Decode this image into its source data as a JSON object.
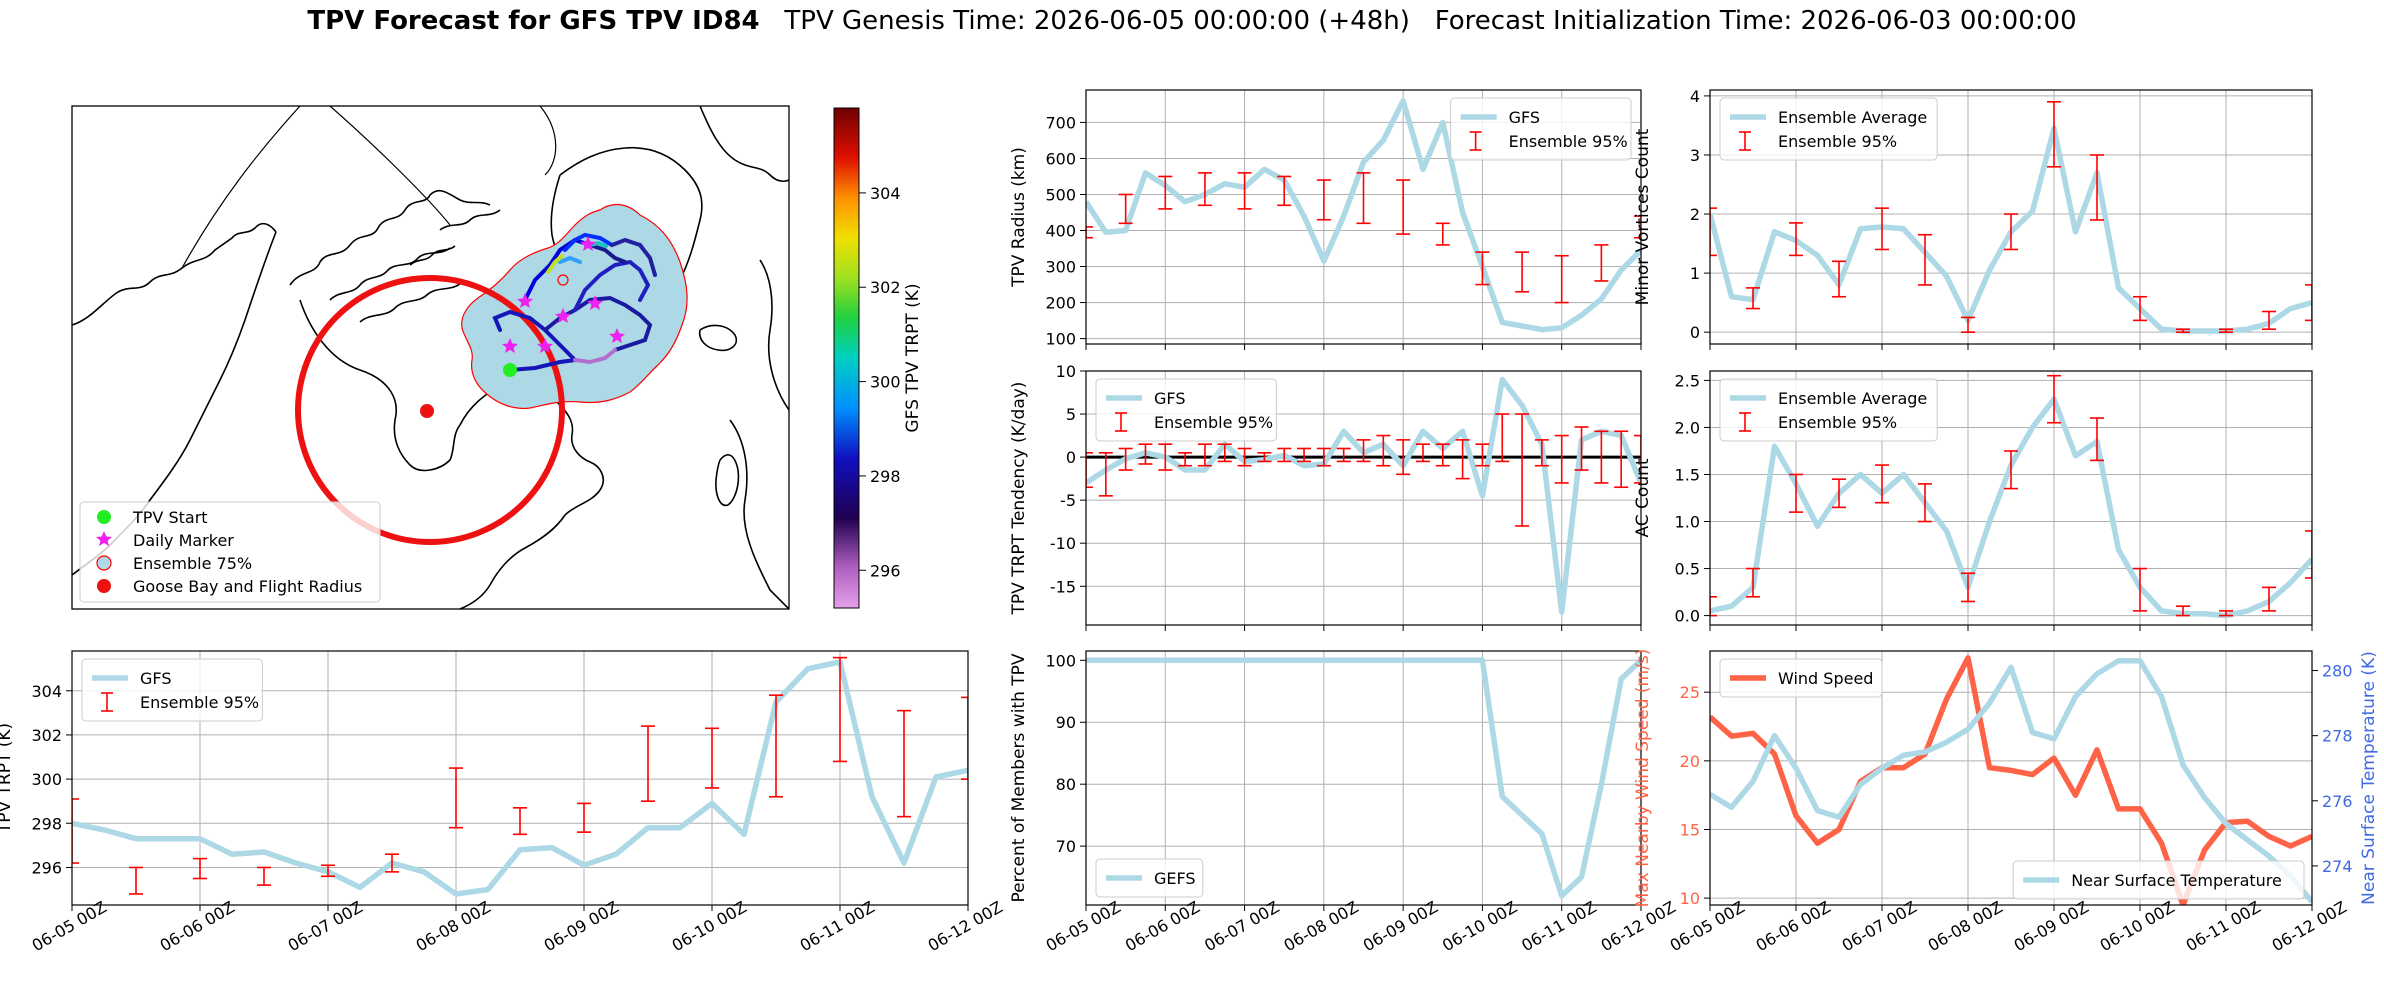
{
  "figure": {
    "title_bold": "TPV Forecast for GFS TPV ID84",
    "title_genesis": "TPV Genesis Time: 2026-06-05 00:00:00 (+48h)",
    "title_init": "Forecast Initialization Time: 2026-06-03 00:00:00"
  },
  "colors": {
    "gfs": "#add8e6",
    "ensemble": "#ff0000",
    "wind": "#ff6347",
    "temperature_axis": "#4169e1",
    "shading": "#add8e6"
  },
  "time_ticks": [
    "06-05 00Z",
    "06-06 00Z",
    "06-07 00Z",
    "06-08 00Z",
    "06-09 00Z",
    "06-10 00Z",
    "06-11 00Z",
    "06-12 00Z"
  ],
  "map": {
    "legend": [
      "TPV Start",
      "Daily Marker",
      "Ensemble 75%",
      "Goose Bay and Flight Radius"
    ],
    "colorbar_label": "GFS TPV TRPT (K)",
    "colorbar_ticks": [
      296,
      298,
      300,
      302,
      304
    ],
    "colorbar_range": [
      295.2,
      305.8
    ]
  },
  "chart_data": [
    {
      "id": "trpt",
      "type": "line",
      "ylabel": "TPV TRPT (K)",
      "ylim": [
        294.3,
        305.8
      ],
      "yticks": [
        296,
        298,
        300,
        302,
        304
      ],
      "xlim": [
        0,
        7
      ],
      "grid": true,
      "legend": [
        "GFS",
        "Ensemble 95%"
      ],
      "legend_position": "upper-left",
      "series": [
        {
          "name": "GFS",
          "x": [
            0,
            0.25,
            0.5,
            0.75,
            1,
            1.25,
            1.5,
            1.75,
            2,
            2.25,
            2.5,
            2.75,
            3,
            3.25,
            3.5,
            3.75,
            4,
            4.25,
            4.5,
            4.75,
            5,
            5.25,
            5.5,
            5.75,
            6,
            6.25,
            6.5,
            6.75,
            7
          ],
          "values": [
            298.0,
            297.7,
            297.3,
            297.3,
            297.3,
            296.6,
            296.7,
            296.2,
            295.8,
            295.1,
            296.2,
            295.8,
            294.8,
            295.0,
            296.8,
            296.9,
            296.1,
            296.6,
            297.8,
            297.8,
            298.9,
            297.5,
            303.5,
            305.0,
            305.3,
            299.2,
            296.2,
            300.1,
            300.4
          ]
        }
      ],
      "errorbars": {
        "x": [
          0,
          0.5,
          1,
          1.5,
          2,
          2.5,
          3,
          3.5,
          4,
          4.5,
          5,
          5.5,
          6,
          6.5,
          7
        ],
        "lower": [
          296.2,
          294.8,
          295.5,
          295.2,
          295.6,
          295.8,
          297.8,
          297.5,
          297.6,
          299.0,
          299.6,
          299.2,
          300.8,
          298.3,
          300.0
        ],
        "upper": [
          299.1,
          296.0,
          296.4,
          296.0,
          296.1,
          296.6,
          300.5,
          298.7,
          298.9,
          302.4,
          302.3,
          303.8,
          305.5,
          303.1,
          303.7
        ]
      }
    },
    {
      "id": "radius",
      "type": "line",
      "ylabel": "TPV Radius (km)",
      "ylim": [
        85,
        790
      ],
      "yticks": [
        100,
        200,
        300,
        400,
        500,
        600,
        700
      ],
      "xlim": [
        0,
        7
      ],
      "grid": true,
      "legend": [
        "GFS",
        "Ensemble 95%"
      ],
      "legend_position": "upper-right",
      "series": [
        {
          "name": "GFS",
          "x": [
            0,
            0.25,
            0.5,
            0.75,
            1,
            1.25,
            1.5,
            1.75,
            2,
            2.25,
            2.5,
            2.75,
            3,
            3.25,
            3.5,
            3.75,
            4,
            4.25,
            4.5,
            4.75,
            5,
            5.25,
            5.5,
            5.75,
            6,
            6.25,
            6.5,
            6.75,
            7
          ],
          "values": [
            480,
            395,
            400,
            560,
            525,
            480,
            500,
            530,
            520,
            570,
            540,
            440,
            315,
            440,
            590,
            650,
            760,
            570,
            700,
            450,
            300,
            145,
            135,
            125,
            130,
            165,
            210,
            290,
            345
          ]
        }
      ],
      "errorbars": {
        "x": [
          0,
          0.5,
          1,
          1.5,
          2,
          2.5,
          3,
          3.5,
          4,
          4.5,
          5,
          5.5,
          6,
          6.5,
          7
        ],
        "lower": [
          380,
          420,
          460,
          470,
          460,
          470,
          430,
          420,
          390,
          360,
          250,
          230,
          200,
          260,
          380
        ],
        "upper": [
          410,
          500,
          550,
          560,
          560,
          550,
          540,
          560,
          540,
          420,
          340,
          340,
          330,
          360,
          440
        ]
      }
    },
    {
      "id": "minor",
      "type": "line",
      "ylabel": "Minor Vortices Count",
      "ylim": [
        -0.2,
        4.1
      ],
      "yticks": [
        0,
        1,
        2,
        3,
        4
      ],
      "xlim": [
        0,
        7
      ],
      "grid": true,
      "legend": [
        "Ensemble Average",
        "Ensemble 95%"
      ],
      "legend_position": "upper-left",
      "series": [
        {
          "name": "Ensemble Average",
          "x": [
            0,
            0.25,
            0.5,
            0.75,
            1,
            1.25,
            1.5,
            1.75,
            2,
            2.25,
            2.5,
            2.75,
            3,
            3.25,
            3.5,
            3.75,
            4,
            4.25,
            4.5,
            4.75,
            5,
            5.25,
            5.5,
            5.75,
            6,
            6.25,
            6.5,
            6.75,
            7
          ],
          "values": [
            2.0,
            0.6,
            0.55,
            1.7,
            1.55,
            1.3,
            0.8,
            1.75,
            1.78,
            1.75,
            1.35,
            0.95,
            0.2,
            1.05,
            1.7,
            2.05,
            3.45,
            1.7,
            2.7,
            0.75,
            0.4,
            0.05,
            0.02,
            0.02,
            0.02,
            0.05,
            0.15,
            0.4,
            0.5
          ]
        }
      ],
      "errorbars": {
        "x": [
          0,
          0.5,
          1,
          1.5,
          2,
          2.5,
          3,
          3.5,
          4,
          4.5,
          5,
          5.5,
          6,
          6.5,
          7
        ],
        "lower": [
          1.3,
          0.4,
          1.3,
          0.6,
          1.4,
          0.8,
          0.0,
          1.4,
          2.8,
          1.9,
          0.2,
          0.0,
          0.0,
          0.05,
          0.2
        ],
        "upper": [
          2.1,
          0.75,
          1.85,
          1.2,
          2.1,
          1.65,
          0.25,
          2.0,
          3.9,
          3.0,
          0.6,
          0.05,
          0.05,
          0.35,
          0.8
        ]
      }
    },
    {
      "id": "tendency",
      "type": "line",
      "ylabel": "TPV TRPT Tendency (K/day)",
      "ylim": [
        -19.5,
        10
      ],
      "yticks": [
        -15,
        -10,
        -5,
        0,
        5,
        10
      ],
      "xlim": [
        0,
        7
      ],
      "grid": true,
      "legend": [
        "GFS",
        "Ensemble 95%"
      ],
      "legend_position": "upper-left",
      "zero_line": true,
      "series": [
        {
          "name": "GFS",
          "x": [
            0,
            0.25,
            0.5,
            0.75,
            1,
            1.25,
            1.5,
            1.75,
            2,
            2.25,
            2.5,
            2.75,
            3,
            3.25,
            3.5,
            3.75,
            4,
            4.25,
            4.5,
            4.75,
            5,
            5.25,
            5.5,
            5.75,
            6,
            6.25,
            6.5,
            6.75,
            7
          ],
          "values": [
            -3.0,
            -1.5,
            -0.2,
            0.5,
            0.0,
            -1.5,
            -1.5,
            1.5,
            -0.5,
            -0.3,
            0.2,
            -1.0,
            -0.8,
            3.0,
            0.5,
            1.5,
            -1.0,
            3.0,
            1.0,
            3.0,
            -4.5,
            9.0,
            6.0,
            1.5,
            -18.0,
            2.0,
            3.0,
            2.5,
            -3.0
          ]
        }
      ],
      "errorbars": {
        "x": [
          0,
          0.25,
          0.5,
          0.75,
          1,
          1.25,
          1.5,
          1.75,
          2,
          2.25,
          2.5,
          2.75,
          3,
          3.25,
          3.5,
          3.75,
          4,
          4.25,
          4.5,
          4.75,
          5,
          5.25,
          5.5,
          5.75,
          6,
          6.25,
          6.5,
          6.75,
          7
        ],
        "lower": [
          -3.5,
          -4.5,
          -1.5,
          -0.8,
          -1.5,
          -1.0,
          -1.0,
          -0.5,
          -1.0,
          -0.5,
          -0.5,
          -0.5,
          -1.0,
          -0.5,
          -0.5,
          -1.0,
          -2.0,
          -0.5,
          -1.0,
          -2.5,
          -1.0,
          -0.5,
          -8.0,
          -1.0,
          -3.0,
          -1.5,
          -3.0,
          -3.5,
          -3.0
        ],
        "upper": [
          0.5,
          0.5,
          1.0,
          1.5,
          1.5,
          0.5,
          1.5,
          1.5,
          1.0,
          0.5,
          1.0,
          1.0,
          1.0,
          1.0,
          2.0,
          2.5,
          2.0,
          1.5,
          1.5,
          2.0,
          1.5,
          5.0,
          5.0,
          2.0,
          2.5,
          3.5,
          3.0,
          3.0,
          2.5
        ]
      }
    },
    {
      "id": "ac",
      "type": "line",
      "ylabel": "AC Count",
      "ylim": [
        -0.1,
        2.6
      ],
      "yticks": [
        0.0,
        0.5,
        1.0,
        1.5,
        2.0,
        2.5
      ],
      "xlim": [
        0,
        7
      ],
      "grid": true,
      "legend": [
        "Ensemble Average",
        "Ensemble 95%"
      ],
      "legend_position": "upper-left",
      "series": [
        {
          "name": "Ensemble Average",
          "x": [
            0,
            0.25,
            0.5,
            0.75,
            1,
            1.25,
            1.5,
            1.75,
            2,
            2.25,
            2.5,
            2.75,
            3,
            3.25,
            3.5,
            3.75,
            4,
            4.25,
            4.5,
            4.75,
            5,
            5.25,
            5.5,
            5.75,
            6,
            6.25,
            6.5,
            6.75,
            7
          ],
          "values": [
            0.05,
            0.1,
            0.3,
            1.8,
            1.4,
            0.95,
            1.3,
            1.5,
            1.3,
            1.5,
            1.2,
            0.9,
            0.3,
            1.0,
            1.6,
            2.0,
            2.3,
            1.7,
            1.85,
            0.7,
            0.3,
            0.05,
            0.02,
            0.02,
            0.0,
            0.05,
            0.15,
            0.35,
            0.6
          ]
        }
      ],
      "errorbars": {
        "x": [
          0,
          0.5,
          1,
          1.5,
          2,
          2.5,
          3,
          3.5,
          4,
          4.5,
          5,
          5.5,
          6,
          6.5,
          7
        ],
        "lower": [
          0.0,
          0.2,
          1.1,
          1.15,
          1.2,
          1.0,
          0.15,
          1.35,
          2.05,
          1.65,
          0.05,
          0.0,
          0.0,
          0.05,
          0.4
        ],
        "upper": [
          0.2,
          0.5,
          1.5,
          1.45,
          1.6,
          1.4,
          0.45,
          1.75,
          2.55,
          2.1,
          0.5,
          0.1,
          0.05,
          0.3,
          0.9
        ]
      }
    },
    {
      "id": "percent",
      "type": "line",
      "ylabel": "Percent of Members with TPV",
      "ylim": [
        60.5,
        101.5
      ],
      "yticks": [
        70,
        80,
        90,
        100
      ],
      "xlim": [
        0,
        7
      ],
      "grid": true,
      "legend": [
        "GEFS"
      ],
      "legend_position": "lower-left",
      "series": [
        {
          "name": "GEFS",
          "x": [
            0,
            0.5,
            1,
            1.5,
            2,
            2.5,
            3,
            3.5,
            4,
            4.5,
            5,
            5.25,
            5.5,
            5.75,
            6,
            6.25,
            6.5,
            6.75,
            7
          ],
          "values": [
            100,
            100,
            100,
            100,
            100,
            100,
            100,
            100,
            100,
            100,
            100,
            78,
            75,
            72,
            62,
            65,
            80,
            97,
            100
          ]
        }
      ]
    },
    {
      "id": "wind",
      "type": "line",
      "ylabel": "Max Nearby Wind Speed (m/s)",
      "ylabel_right": "Near Surface Temperature (K)",
      "ylim": [
        9.5,
        28
      ],
      "yticks": [
        10,
        15,
        20,
        25
      ],
      "ylim_right": [
        272.8,
        280.6
      ],
      "yticks_right": [
        274,
        276,
        278,
        280
      ],
      "xlim": [
        0,
        7
      ],
      "grid": true,
      "legend": [
        "Wind Speed"
      ],
      "legend_right": [
        "Near Surface Temperature"
      ],
      "legend_position": "upper-left",
      "series": [
        {
          "name": "Wind Speed",
          "axis": "left",
          "x": [
            0,
            0.25,
            0.5,
            0.75,
            1,
            1.25,
            1.5,
            1.75,
            2,
            2.25,
            2.5,
            2.75,
            3,
            3.25,
            3.5,
            3.75,
            4,
            4.25,
            4.5,
            4.75,
            5,
            5.25,
            5.5,
            5.75,
            6,
            6.25,
            6.5,
            6.75,
            7
          ],
          "values": [
            23.2,
            21.8,
            22.0,
            20.5,
            16.0,
            14.0,
            15.0,
            18.5,
            19.5,
            19.5,
            20.5,
            24.5,
            27.5,
            19.5,
            19.3,
            19.0,
            20.2,
            17.5,
            20.8,
            16.5,
            16.5,
            14.0,
            9.5,
            13.5,
            15.5,
            15.6,
            14.5,
            13.8,
            14.5
          ]
        },
        {
          "name": "Near Surface Temperature",
          "axis": "right",
          "x": [
            0,
            0.25,
            0.5,
            0.75,
            1,
            1.25,
            1.5,
            1.75,
            2,
            2.25,
            2.5,
            2.75,
            3,
            3.25,
            3.5,
            3.75,
            4,
            4.25,
            4.5,
            4.75,
            5,
            5.25,
            5.5,
            5.75,
            6,
            6.25,
            6.5,
            6.75,
            7
          ],
          "values": [
            276.2,
            275.8,
            276.6,
            278.0,
            277.0,
            275.7,
            275.5,
            276.5,
            277.0,
            277.4,
            277.5,
            277.8,
            278.2,
            279.0,
            280.1,
            278.1,
            277.9,
            279.2,
            279.9,
            280.3,
            280.3,
            279.2,
            277.1,
            276.1,
            275.3,
            274.8,
            274.3,
            273.7,
            272.9
          ]
        }
      ]
    }
  ]
}
